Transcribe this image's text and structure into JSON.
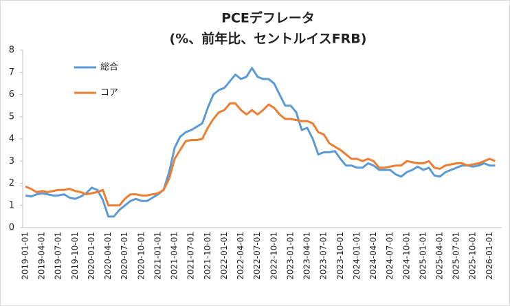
{
  "chart_data": {
    "type": "line",
    "title": "PCEデフレータ",
    "subtitle": "(%、前年比、セントルイスFRB)",
    "categories": [
      "2019-01-01",
      null,
      null,
      "2019-04-01",
      null,
      null,
      "2019-07-01",
      null,
      null,
      "2019-10-01",
      null,
      null,
      "2020-01-01",
      null,
      null,
      "2020-04-01",
      null,
      null,
      "2020-07-01",
      null,
      null,
      "2020-10-01",
      null,
      null,
      "2021-01-01",
      null,
      null,
      "2021-04-01",
      null,
      null,
      "2021-07-01",
      null,
      null,
      "2021-10-01",
      null,
      null,
      "2022-01-01",
      null,
      null,
      "2022-04-01",
      null,
      null,
      "2022-07-01",
      null,
      null,
      "2022-10-01",
      null,
      null,
      "2023-01-01",
      null,
      null,
      "2023-04-01",
      null,
      null,
      "2023-07-01",
      null,
      null,
      "2023-10-01",
      null,
      null,
      "2024-01-01",
      null,
      null,
      "2024-04-01",
      null,
      null,
      "2024-07-01",
      null,
      null,
      "2024-10-01",
      null,
      null,
      "2025-01-01",
      null,
      null,
      "2025-04-01",
      null,
      null,
      "2025-07-01",
      null,
      null,
      "2025-10-01",
      null,
      null,
      "2026-01-01",
      null
    ],
    "series": [
      {
        "name": "総合",
        "color": "#5b9bd5",
        "values": [
          1.45,
          1.4,
          1.5,
          1.55,
          1.5,
          1.45,
          1.45,
          1.5,
          1.35,
          1.3,
          1.4,
          1.55,
          1.8,
          1.7,
          1.25,
          0.5,
          0.5,
          0.8,
          1.0,
          1.2,
          1.3,
          1.2,
          1.2,
          1.35,
          1.5,
          1.7,
          2.5,
          3.6,
          4.1,
          4.3,
          4.4,
          4.55,
          4.7,
          5.4,
          6.0,
          6.2,
          6.3,
          6.6,
          6.9,
          6.7,
          6.8,
          7.2,
          6.8,
          6.7,
          6.7,
          6.5,
          6.0,
          5.5,
          5.5,
          5.2,
          4.4,
          4.5,
          4.0,
          3.3,
          3.4,
          3.4,
          3.45,
          3.1,
          2.8,
          2.8,
          2.7,
          2.7,
          2.9,
          2.8,
          2.6,
          2.6,
          2.6,
          2.4,
          2.3,
          2.5,
          2.6,
          2.75,
          2.6,
          2.7,
          2.35,
          2.3,
          2.5,
          2.6,
          2.7,
          2.8,
          2.8,
          2.75,
          2.8,
          2.9,
          2.8,
          2.8
        ]
      },
      {
        "name": "コア",
        "color": "#ed7d31",
        "values": [
          1.85,
          1.75,
          1.6,
          1.65,
          1.6,
          1.65,
          1.7,
          1.7,
          1.75,
          1.65,
          1.6,
          1.5,
          1.55,
          1.6,
          1.7,
          1.0,
          1.0,
          1.0,
          1.3,
          1.5,
          1.5,
          1.45,
          1.45,
          1.5,
          1.55,
          1.7,
          2.2,
          3.1,
          3.5,
          3.9,
          3.95,
          3.95,
          4.0,
          4.5,
          4.9,
          5.2,
          5.3,
          5.6,
          5.6,
          5.3,
          5.1,
          5.3,
          5.1,
          5.3,
          5.55,
          5.4,
          5.1,
          4.9,
          4.9,
          4.85,
          4.8,
          4.8,
          4.7,
          4.3,
          4.2,
          3.8,
          3.65,
          3.5,
          3.3,
          3.1,
          3.1,
          3.0,
          3.1,
          3.0,
          2.7,
          2.7,
          2.75,
          2.8,
          2.8,
          3.0,
          2.95,
          2.9,
          2.9,
          3.0,
          2.7,
          2.65,
          2.8,
          2.85,
          2.9,
          2.9,
          2.8,
          2.85,
          2.9,
          3.0,
          3.1,
          3.0
        ]
      }
    ],
    "ylim": [
      0,
      8
    ],
    "yticks": [
      0,
      1,
      2,
      3,
      4,
      5,
      6,
      7,
      8
    ],
    "grid": false,
    "legend": "upper left"
  }
}
